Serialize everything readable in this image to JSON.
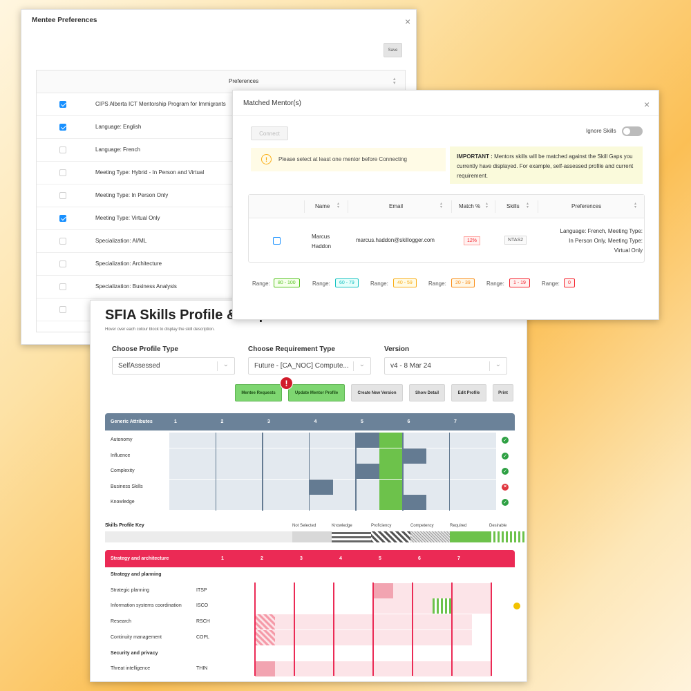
{
  "mentee_prefs": {
    "title": "Mentee Preferences",
    "close": "×",
    "save": "Save",
    "column": "Preferences",
    "items": [
      {
        "label": "CIPS Alberta ICT Mentorship Program for Immigrants",
        "checked": true
      },
      {
        "label": "Language: English",
        "checked": true
      },
      {
        "label": "Language: French",
        "checked": false
      },
      {
        "label": "Meeting Type: Hybrid - In Person and Virtual",
        "checked": false
      },
      {
        "label": "Meeting Type: In Person Only",
        "checked": false
      },
      {
        "label": "Meeting Type: Virtual Only",
        "checked": true
      },
      {
        "label": "Specialization: AI/ML",
        "checked": false
      },
      {
        "label": "Specialization: Architecture",
        "checked": false
      },
      {
        "label": "Specialization: Business Analysis",
        "checked": false
      },
      {
        "label": "",
        "checked": false
      }
    ]
  },
  "matched": {
    "title": "Matched Mentor(s)",
    "close": "×",
    "connect": "Connect",
    "ignore_skills": "Ignore Skills",
    "warning_icon": "!",
    "warning": "Please select at least one mentor before Connecting",
    "important_label": "IMPORTANT :",
    "important_text": "Mentors skills will be matched against the Skill Gaps you currently have displayed. For example, self-assessed profile and current requirement.",
    "columns": {
      "name": "Name",
      "email": "Email",
      "match": "Match %",
      "skills": "Skills",
      "preferences": "Preferences"
    },
    "row": {
      "name_first": "Marcus",
      "name_last": "Haddon",
      "email": "marcus.haddon@skillogger.com",
      "match": "12%",
      "skills": "NTAS2",
      "preferences": "Language: French, Meeting Type: In Person Only, Meeting Type: Virtual Only"
    },
    "range_label": "Range:",
    "ranges": [
      {
        "label": "80 - 100",
        "color": "#52c41a",
        "bg": "#f6ffed"
      },
      {
        "label": "60 - 79",
        "color": "#13c2c2",
        "bg": "#e6fffb"
      },
      {
        "label": "40 - 59",
        "color": "#faad14",
        "bg": "#fffbe6"
      },
      {
        "label": "20 - 39",
        "color": "#fa8c16",
        "bg": "#fff7e6"
      },
      {
        "label": "1 - 19",
        "color": "#f5222d",
        "bg": "#fff1f0"
      },
      {
        "label": "0",
        "color": "#f5222d",
        "bg": "#fff1f0"
      }
    ]
  },
  "sfia": {
    "title": "SFIA Skills Profile & Gaps",
    "subtitle": "Hover over each colour block to display the skill description.",
    "profile_label": "Choose Profile Type",
    "profile_value": "SelfAssessed",
    "req_label": "Choose Requirement Type",
    "req_value": "Future - [CA_NOC] Compute...",
    "version_label": "Version",
    "version_value": "v4 - 8 Mar 24",
    "buttons": {
      "mentee_requests": "Mentee Requests",
      "update_mentor": "Update Mentor Profile",
      "create_version": "Create New Version",
      "show_detail": "Show Detail",
      "edit_profile": "Edit Profile",
      "print": "Print"
    },
    "alert_badge": "!",
    "levels": [
      "1",
      "2",
      "3",
      "4",
      "5",
      "6",
      "7"
    ],
    "generic_title": "Generic Attributes",
    "generic_rows": [
      {
        "label": "Autonomy",
        "status": "ok",
        "current": 5,
        "required": 5
      },
      {
        "label": "Influence",
        "status": "ok",
        "current": 6,
        "required": 5
      },
      {
        "label": "Complexity",
        "status": "ok",
        "current": 5,
        "required": 5
      },
      {
        "label": "Business Skills",
        "status": "bad",
        "current": 4,
        "required": 5
      },
      {
        "label": "Knowledge",
        "status": "ok",
        "current": 6,
        "required": 5
      }
    ],
    "status_icons": {
      "ok": "✓",
      "bad": "×"
    },
    "key": {
      "title": "Skills Profile Key",
      "items": [
        "Not Selected",
        "Knowledge",
        "Proficiency",
        "Competency",
        "Required",
        "Desirable"
      ]
    },
    "strategy_title": "Strategy and architecture",
    "strategy_rows": [
      {
        "type": "group",
        "label": "Strategy and planning"
      },
      {
        "type": "skill",
        "label": "Strategic planning",
        "code": "ITSP"
      },
      {
        "type": "skill",
        "label": "Information systems coordination",
        "code": "ISCO"
      },
      {
        "type": "skill",
        "label": "Research",
        "code": "RSCH"
      },
      {
        "type": "skill",
        "label": "Continuity management",
        "code": "COPL"
      },
      {
        "type": "group",
        "label": "Security and privacy"
      },
      {
        "type": "skill",
        "label": "Threat intelligence",
        "code": "THIN"
      }
    ],
    "colors": {
      "blue": "#6b8299",
      "red": "#eb2a55",
      "green": "#6dc24b"
    }
  }
}
